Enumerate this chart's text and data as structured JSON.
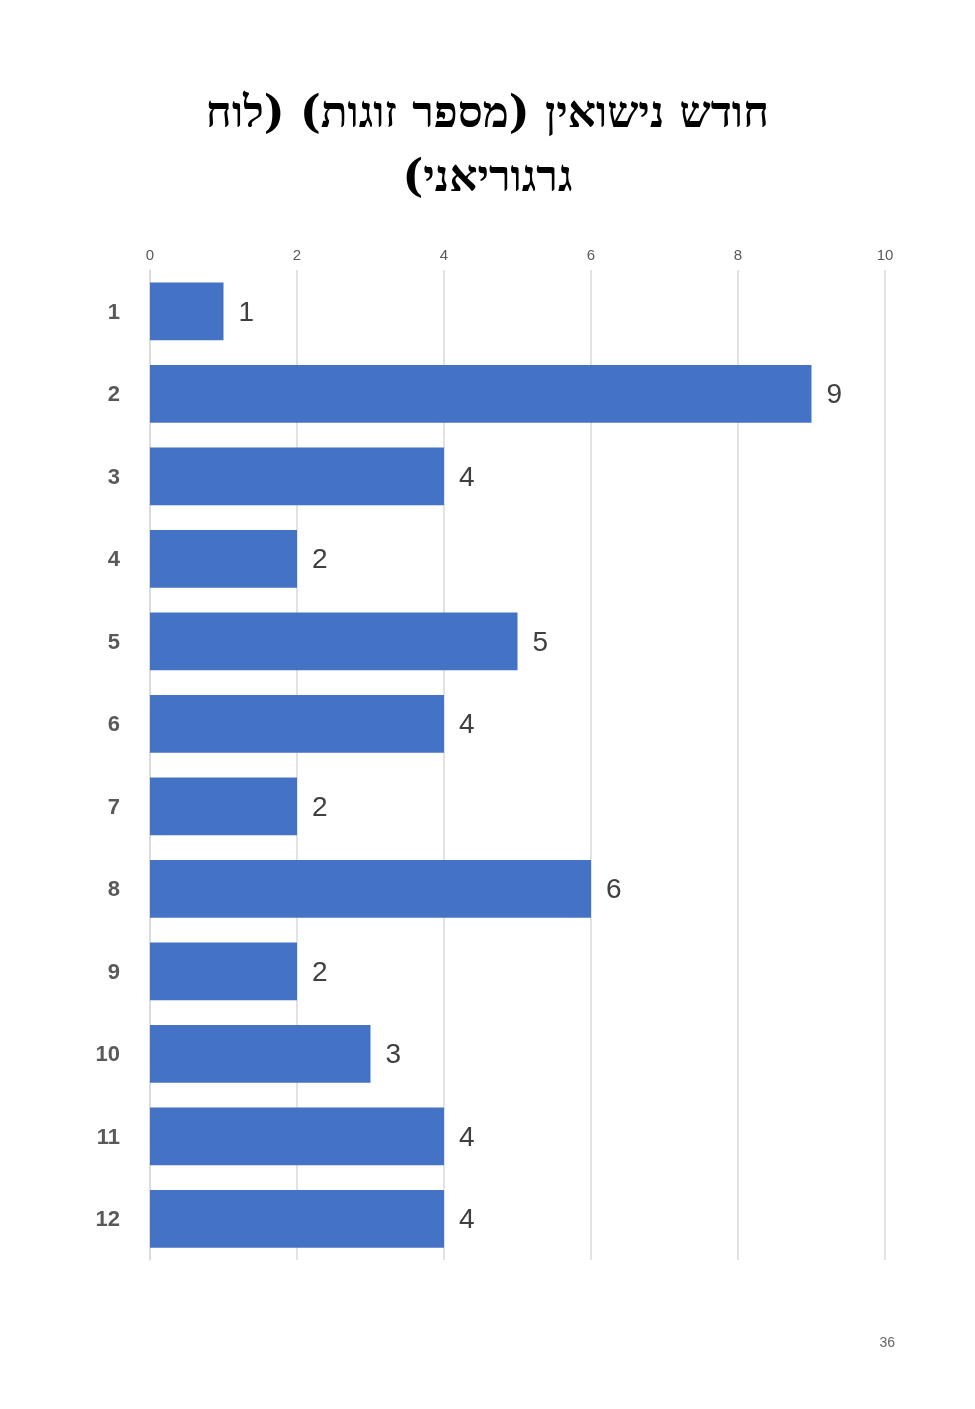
{
  "chart_data": {
    "type": "bar",
    "orientation": "horizontal",
    "title": "חודש נישואין (מספר זוגות) (לוח גרגוריאני)",
    "categories": [
      "1",
      "2",
      "3",
      "4",
      "5",
      "6",
      "7",
      "8",
      "9",
      "10",
      "11",
      "12"
    ],
    "values": [
      1,
      9,
      4,
      2,
      5,
      4,
      2,
      6,
      2,
      3,
      4,
      4
    ],
    "color": "#4472c4",
    "xlim": [
      0,
      10
    ],
    "xticks": [
      0,
      2,
      4,
      6,
      8,
      10
    ],
    "grid": "x",
    "data_labels": true,
    "annotations": [
      "36"
    ]
  }
}
